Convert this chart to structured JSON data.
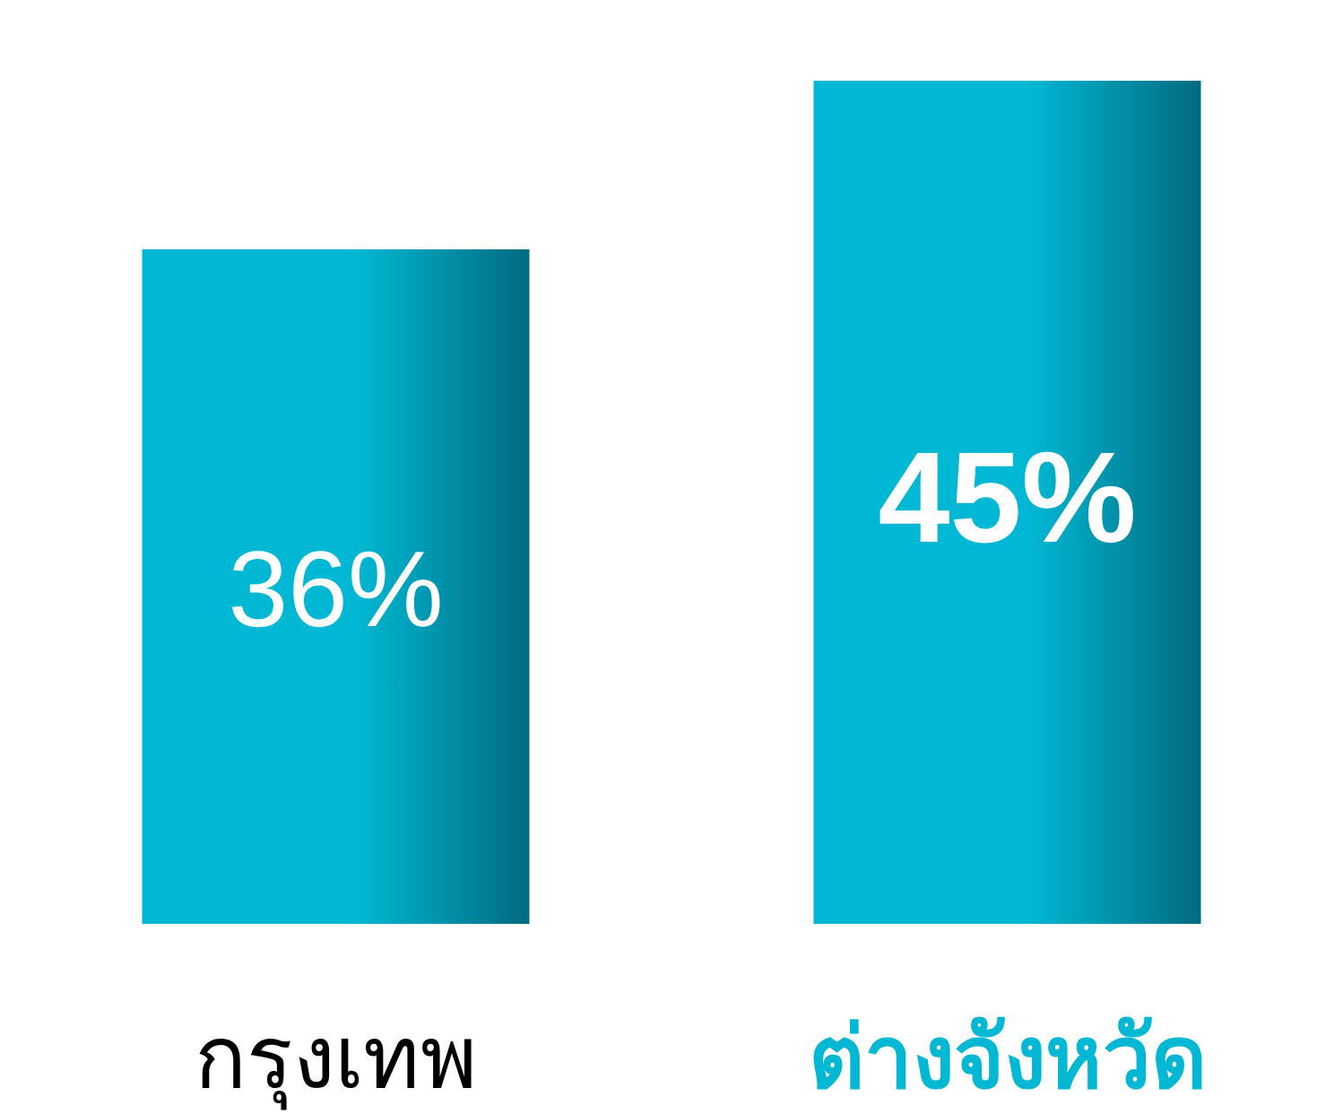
{
  "chart_data": {
    "type": "bar",
    "categories": [
      "กรุงเทพ",
      "ต่างจังหวัด"
    ],
    "values": [
      36,
      45
    ],
    "colors": [
      "#00b8d4",
      "#00b8d4"
    ],
    "data_labels": true,
    "value_labels": [
      "36%",
      "45%"
    ]
  }
}
